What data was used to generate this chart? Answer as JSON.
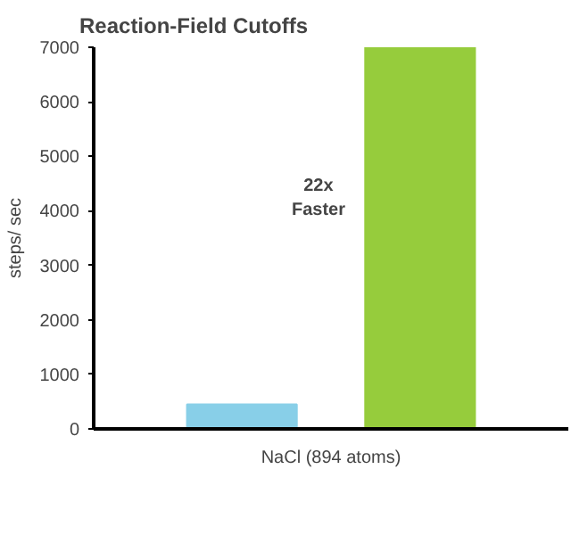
{
  "chart_data": {
    "type": "bar",
    "title": "Reaction-Field Cutoffs",
    "ylabel": "steps/ sec",
    "categories": [
      "NaCl (894 atoms)"
    ],
    "series": [
      {
        "color": "#88cfe8",
        "values": [
          450
        ]
      },
      {
        "color": "#96cc3c",
        "values": [
          7000
        ]
      }
    ],
    "ylim": [
      0,
      7000
    ],
    "yticks": [
      0,
      1000,
      2000,
      3000,
      4000,
      5000,
      6000,
      7000
    ],
    "grid": false,
    "annotations": [
      "22x\nFaster"
    ]
  }
}
